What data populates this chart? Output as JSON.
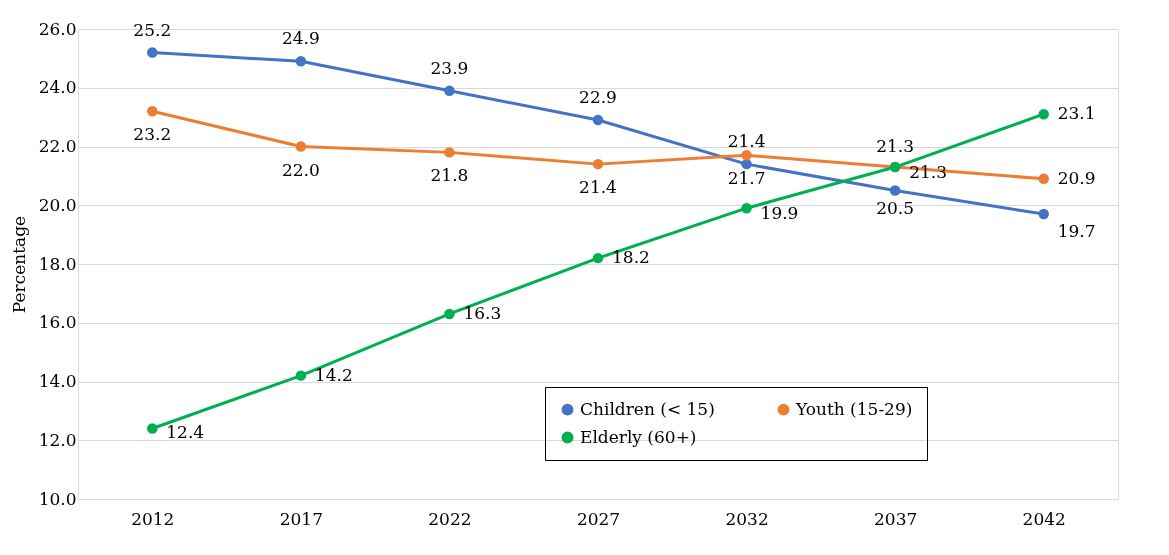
{
  "chart_data": {
    "type": "line",
    "ylabel": "Percentage",
    "categories": [
      "2012",
      "2017",
      "2022",
      "2027",
      "2032",
      "2037",
      "2042"
    ],
    "series": [
      {
        "name": "Children (< 15)",
        "color": "#4472c4",
        "values": [
          25.2,
          24.9,
          23.9,
          22.9,
          21.4,
          20.5,
          19.7
        ],
        "value_labels": [
          "25.2",
          "24.9",
          "23.9",
          "22.9",
          "21.4",
          "20.5",
          "19.7"
        ]
      },
      {
        "name": "Youth (15-29)",
        "color": "#ed7d31",
        "values": [
          23.2,
          22.0,
          21.8,
          21.4,
          21.7,
          21.3,
          20.9
        ],
        "value_labels": [
          "23.2",
          "22.0",
          "21.8",
          "21.4",
          "21.7",
          "21.3",
          "20.9"
        ]
      },
      {
        "name": "Elderly (60+)",
        "color": "#00b050",
        "values": [
          12.4,
          14.2,
          16.3,
          18.2,
          19.9,
          21.3,
          23.1
        ],
        "value_labels": [
          "12.4",
          "14.2",
          "16.3",
          "18.2",
          "19.9",
          "21.3",
          "23.1"
        ]
      }
    ],
    "ylim": [
      10,
      26
    ],
    "yticks": [
      {
        "value": 10,
        "label": "10.0"
      },
      {
        "value": 12,
        "label": "12.0"
      },
      {
        "value": 14,
        "label": "14.0"
      },
      {
        "value": 16,
        "label": "16.0"
      },
      {
        "value": 18,
        "label": "18.0"
      },
      {
        "value": 20,
        "label": "20.0"
      },
      {
        "value": 22,
        "label": "22.0"
      },
      {
        "value": 24,
        "label": "24.0"
      },
      {
        "value": 26,
        "label": "26.0"
      }
    ],
    "grid": "y",
    "legend": "bottom right",
    "marker": "circle",
    "line_style": "solid"
  }
}
